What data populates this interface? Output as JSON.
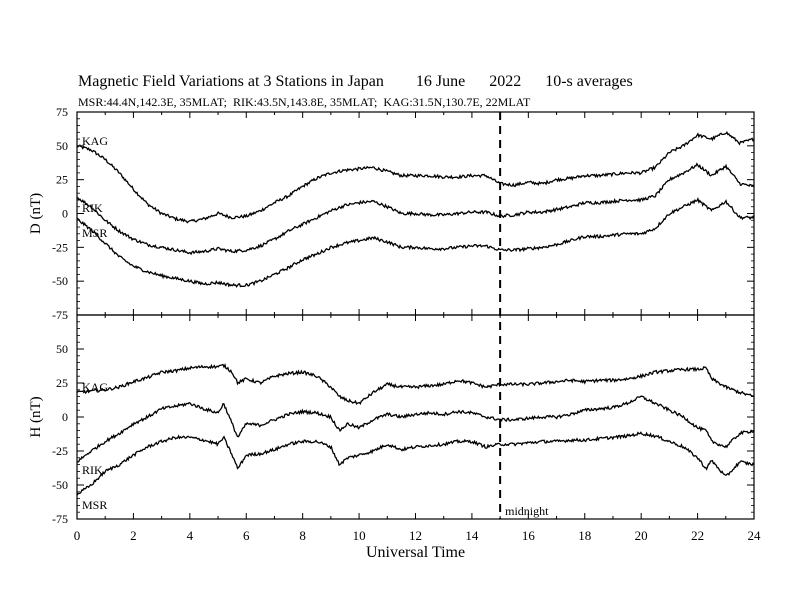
{
  "chart_data": [
    {
      "type": "line",
      "panel": "D",
      "ylabel": "D (nT)",
      "ylim": [
        -75,
        75
      ],
      "yticks": [
        75,
        50,
        25,
        0,
        -25,
        -50,
        -75
      ],
      "xlim": [
        0,
        24
      ],
      "series": [
        {
          "name": "KAG",
          "x": [
            0,
            0.5,
            1,
            1.5,
            2,
            2.5,
            3,
            3.5,
            4,
            4.5,
            5,
            5.5,
            6,
            6.5,
            7,
            7.5,
            8,
            8.5,
            9,
            9.5,
            10,
            10.5,
            11,
            11.5,
            12,
            12.5,
            13,
            13.5,
            14,
            14.5,
            15,
            15.5,
            16,
            16.5,
            17,
            17.5,
            18,
            18.5,
            19,
            19.5,
            20,
            20.5,
            21,
            21.5,
            22,
            22.5,
            23,
            23.5,
            24
          ],
          "values": [
            50,
            47,
            40,
            30,
            18,
            7,
            0,
            -4,
            -6,
            -4,
            0,
            -3,
            -2,
            2,
            8,
            13,
            20,
            26,
            30,
            32,
            33,
            34,
            31,
            28,
            28,
            28,
            27,
            27,
            28,
            28,
            22,
            21,
            23,
            22,
            25,
            26,
            28,
            28,
            29,
            30,
            30,
            34,
            45,
            50,
            58,
            55,
            60,
            52,
            55
          ]
        },
        {
          "name": "RIK",
          "x": [
            0,
            0.5,
            1,
            1.5,
            2,
            2.5,
            3,
            3.5,
            4,
            4.5,
            5,
            5.5,
            6,
            6.5,
            7,
            7.5,
            8,
            8.5,
            9,
            9.5,
            10,
            10.5,
            11,
            11.5,
            12,
            12.5,
            13,
            13.5,
            14,
            14.5,
            15,
            15.5,
            16,
            16.5,
            17,
            17.5,
            18,
            18.5,
            19,
            19.5,
            20,
            20.5,
            21,
            21.5,
            22,
            22.5,
            23,
            23.5,
            24
          ],
          "values": [
            12,
            5,
            -5,
            -13,
            -19,
            -23,
            -25,
            -27,
            -29,
            -28,
            -26,
            -28,
            -27,
            -24,
            -19,
            -13,
            -8,
            -3,
            2,
            6,
            8,
            9,
            5,
            0,
            0,
            -1,
            -1,
            0,
            1,
            1,
            -2,
            -1,
            1,
            1,
            3,
            5,
            8,
            8,
            9,
            10,
            10,
            13,
            25,
            30,
            36,
            28,
            35,
            22,
            20
          ]
        },
        {
          "name": "MSR",
          "x": [
            0,
            0.5,
            1,
            1.5,
            2,
            2.5,
            3,
            3.5,
            4,
            4.5,
            5,
            5.5,
            6,
            6.5,
            7,
            7.5,
            8,
            8.5,
            9,
            9.5,
            10,
            10.5,
            11,
            11.5,
            12,
            12.5,
            13,
            13.5,
            14,
            14.5,
            15,
            15.5,
            16,
            16.5,
            17,
            17.5,
            18,
            18.5,
            19,
            19.5,
            20,
            20.5,
            21,
            21.5,
            22,
            22.5,
            23,
            23.5,
            24
          ],
          "values": [
            -4,
            -12,
            -22,
            -32,
            -39,
            -43,
            -46,
            -48,
            -50,
            -52,
            -51,
            -53,
            -53,
            -50,
            -45,
            -40,
            -34,
            -30,
            -25,
            -22,
            -20,
            -18,
            -21,
            -25,
            -25,
            -26,
            -26,
            -25,
            -24,
            -24,
            -27,
            -27,
            -26,
            -25,
            -23,
            -20,
            -17,
            -17,
            -16,
            -15,
            -15,
            -11,
            0,
            5,
            10,
            2,
            9,
            -3,
            -3
          ]
        }
      ]
    },
    {
      "type": "line",
      "panel": "H",
      "ylabel": "H (nT)",
      "ylim": [
        -75,
        75
      ],
      "yticks": [
        50,
        25,
        0,
        -25,
        -50,
        -75
      ],
      "xlabel": "Universal Time",
      "xlim": [
        0,
        24
      ],
      "xticks": [
        0,
        2,
        4,
        6,
        8,
        10,
        12,
        14,
        16,
        18,
        20,
        22,
        24
      ],
      "series": [
        {
          "name": "KAG",
          "x": [
            0,
            0.5,
            1,
            1.5,
            2,
            2.5,
            3,
            3.5,
            4,
            4.5,
            5,
            5.2,
            5.5,
            5.7,
            6,
            6.5,
            7,
            7.5,
            8,
            8.5,
            9,
            9.3,
            9.6,
            10,
            10.5,
            11,
            11.5,
            12,
            12.5,
            13,
            13.5,
            14,
            14.5,
            15,
            15.5,
            16,
            16.5,
            17,
            17.5,
            18,
            18.5,
            19,
            19.5,
            20,
            20.5,
            21,
            21.5,
            22,
            22.3,
            22.5,
            23,
            23.5,
            24
          ],
          "values": [
            18,
            19,
            20,
            22,
            26,
            29,
            33,
            34,
            36,
            37,
            37,
            38,
            33,
            25,
            28,
            25,
            30,
            32,
            33,
            30,
            22,
            15,
            12,
            10,
            18,
            24,
            22,
            22,
            23,
            24,
            27,
            25,
            22,
            24,
            24,
            24,
            25,
            26,
            27,
            26,
            27,
            27,
            28,
            30,
            33,
            34,
            35,
            35,
            36,
            28,
            22,
            18,
            15
          ]
        },
        {
          "name": "RIK",
          "x": [
            0,
            0.5,
            1,
            1.5,
            2,
            2.5,
            3,
            3.5,
            4,
            4.5,
            5,
            5.2,
            5.5,
            5.7,
            6,
            6.5,
            7,
            7.5,
            8,
            8.5,
            9,
            9.3,
            9.6,
            10,
            10.5,
            11,
            11.5,
            12,
            12.5,
            13,
            13.5,
            14,
            14.5,
            15,
            15.5,
            16,
            16.5,
            17,
            17.5,
            18,
            18.5,
            19,
            19.5,
            20,
            20.5,
            21,
            21.5,
            22,
            22.3,
            22.5,
            23,
            23.5,
            24
          ],
          "values": [
            -33,
            -25,
            -18,
            -12,
            -5,
            0,
            6,
            8,
            10,
            6,
            3,
            10,
            -5,
            -15,
            -5,
            -6,
            -2,
            2,
            4,
            3,
            0,
            -10,
            -5,
            -8,
            -2,
            2,
            0,
            2,
            3,
            2,
            4,
            3,
            0,
            -2,
            -2,
            -1,
            0,
            0,
            2,
            5,
            6,
            7,
            10,
            15,
            10,
            5,
            0,
            -8,
            -10,
            -18,
            -22,
            -12,
            -10
          ]
        },
        {
          "name": "MSR",
          "x": [
            0,
            0.5,
            1,
            1.5,
            2,
            2.5,
            3,
            3.5,
            4,
            4.5,
            5,
            5.2,
            5.5,
            5.7,
            6,
            6.5,
            7,
            7.5,
            8,
            8.5,
            9,
            9.3,
            9.6,
            10,
            10.5,
            11,
            11.5,
            12,
            12.5,
            13,
            13.5,
            14,
            14.5,
            15,
            15.5,
            16,
            16.5,
            17,
            17.5,
            18,
            18.5,
            19,
            19.5,
            20,
            20.5,
            21,
            21.5,
            22,
            22.3,
            22.5,
            23,
            23.5,
            24
          ],
          "values": [
            -57,
            -50,
            -40,
            -35,
            -28,
            -22,
            -18,
            -15,
            -15,
            -17,
            -20,
            -15,
            -28,
            -38,
            -28,
            -27,
            -24,
            -20,
            -18,
            -18,
            -22,
            -35,
            -30,
            -28,
            -25,
            -20,
            -24,
            -22,
            -21,
            -20,
            -18,
            -18,
            -22,
            -20,
            -20,
            -19,
            -18,
            -18,
            -17,
            -17,
            -16,
            -15,
            -14,
            -12,
            -14,
            -18,
            -22,
            -30,
            -38,
            -32,
            -44,
            -33,
            -35
          ]
        }
      ]
    }
  ],
  "title": "Magnetic Field Variations at 3 Stations in Japan        16 June      2022      10-s averages",
  "subtitle": "MSR:44.4N,142.3E, 35MLAT;  RIK:43.5N,143.8E, 35MLAT;  KAG:31.5N,130.7E, 22MLAT",
  "midnight": {
    "x": 15,
    "label": "midnight"
  },
  "colors": {
    "line": "#000000",
    "background": "#ffffff"
  }
}
